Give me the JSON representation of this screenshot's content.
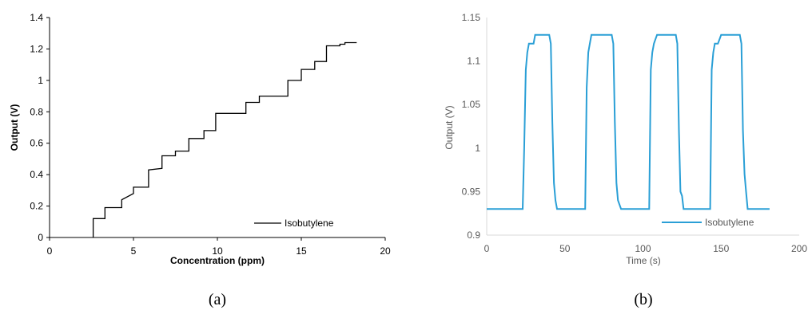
{
  "chart_data": [
    {
      "type": "line",
      "panel_label": "(a)",
      "xlabel": "Concentration (ppm)",
      "ylabel": "Output (V)",
      "xlim": [
        0,
        20
      ],
      "ylim": [
        0,
        1.4
      ],
      "xticks": [
        "0",
        "5",
        "10",
        "15",
        "20"
      ],
      "yticks": [
        "0",
        "0.2",
        "0.4",
        "0.6",
        "0.8",
        "1",
        "1.2",
        "1.4"
      ],
      "grid": false,
      "legend_position": "bottom-right",
      "color": "#000000",
      "series": [
        {
          "name": "Isobutylene",
          "x": [
            2.6,
            2.6,
            3.3,
            3.3,
            4.3,
            4.3,
            5.0,
            5.0,
            5.9,
            5.9,
            6.7,
            6.7,
            7.5,
            7.5,
            8.3,
            8.3,
            9.2,
            9.2,
            9.9,
            9.9,
            11.7,
            11.7,
            12.5,
            12.5,
            14.2,
            14.2,
            15.0,
            15.0,
            15.8,
            15.8,
            16.5,
            16.5,
            17.3,
            17.3,
            17.6,
            17.6,
            18.3
          ],
          "y": [
            0,
            0.12,
            0.12,
            0.19,
            0.19,
            0.24,
            0.28,
            0.32,
            0.32,
            0.43,
            0.44,
            0.52,
            0.52,
            0.55,
            0.55,
            0.63,
            0.63,
            0.68,
            0.68,
            0.79,
            0.79,
            0.86,
            0.86,
            0.9,
            0.9,
            1.0,
            1.0,
            1.07,
            1.07,
            1.12,
            1.12,
            1.22,
            1.22,
            1.23,
            1.23,
            1.24,
            1.24
          ]
        }
      ]
    },
    {
      "type": "line",
      "panel_label": "(b)",
      "xlabel": "Time (s)",
      "ylabel": "Output (V)",
      "xlim": [
        0,
        200
      ],
      "ylim": [
        0.9,
        1.15
      ],
      "xticks": [
        "0",
        "50",
        "100",
        "150",
        "200"
      ],
      "yticks": [
        "0.9",
        "0.95",
        "1",
        "1.05",
        "1.1",
        "1.15"
      ],
      "grid": false,
      "legend_position": "bottom-right",
      "color": "#2a9fd6",
      "series": [
        {
          "name": "Isobutylene",
          "x": [
            0,
            23,
            24,
            25,
            26,
            27,
            28,
            30,
            31,
            40,
            41,
            42,
            43,
            44,
            45,
            47,
            63,
            64,
            65,
            66,
            67,
            69,
            80,
            81,
            82,
            83,
            84,
            86,
            104,
            105,
            106,
            107,
            108,
            109,
            110,
            121,
            122,
            123,
            124,
            125,
            126,
            127,
            143,
            144,
            145,
            146,
            147,
            148,
            150,
            151,
            162,
            163,
            164,
            165,
            166,
            167,
            181
          ],
          "y": [
            0.93,
            0.93,
            1.0,
            1.09,
            1.11,
            1.12,
            1.12,
            1.12,
            1.13,
            1.13,
            1.12,
            1.03,
            0.96,
            0.94,
            0.93,
            0.93,
            0.93,
            1.07,
            1.11,
            1.12,
            1.13,
            1.13,
            1.13,
            1.12,
            1.03,
            0.96,
            0.94,
            0.93,
            0.93,
            1.09,
            1.11,
            1.12,
            1.125,
            1.13,
            1.13,
            1.13,
            1.12,
            1.02,
            0.95,
            0.945,
            0.93,
            0.93,
            0.93,
            1.09,
            1.11,
            1.12,
            1.12,
            1.12,
            1.13,
            1.13,
            1.13,
            1.12,
            1.02,
            0.97,
            0.95,
            0.93,
            0.93
          ]
        }
      ]
    }
  ]
}
